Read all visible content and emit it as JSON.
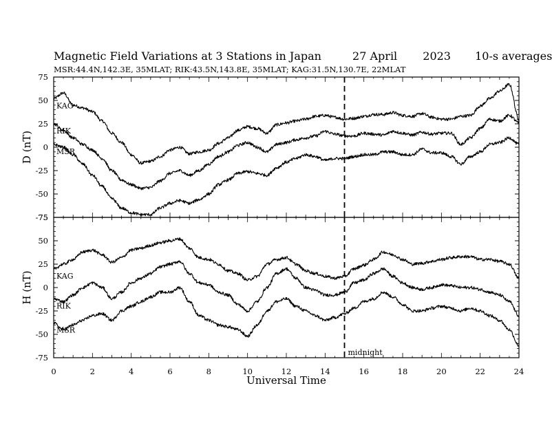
{
  "header": {
    "title": "Magnetic Field Variations at 3 Stations in Japan",
    "date": "27 April",
    "year": "2023",
    "averaging": "10-s averages",
    "subtitle": "MSR:44.4N,142.3E, 35MLAT;  RIK:43.5N,143.8E, 35MLAT;  KAG:31.5N,130.7E, 22MLAT"
  },
  "chart_data": [
    {
      "type": "line",
      "panel": "D",
      "ylabel": "D (nT)",
      "ylim": [
        -75,
        75
      ],
      "yticks": [
        -75,
        -50,
        -25,
        0,
        25,
        50,
        75
      ],
      "xlim": [
        0,
        24
      ],
      "grid": false,
      "series": [
        {
          "name": "KAG",
          "x": [
            0,
            0.5,
            1,
            1.5,
            2,
            2.5,
            3,
            3.5,
            4,
            4.5,
            5,
            5.5,
            6,
            6.5,
            7,
            7.5,
            8,
            8.5,
            9,
            9.5,
            10,
            10.5,
            11,
            11.5,
            12,
            12.5,
            13,
            13.5,
            14,
            14.5,
            15,
            15.5,
            16,
            16.5,
            17,
            17.5,
            18,
            18.5,
            19,
            19.5,
            20,
            20.5,
            21,
            21.5,
            22,
            22.5,
            23,
            23.5,
            24
          ],
          "y": [
            52,
            58,
            45,
            42,
            38,
            28,
            15,
            5,
            -8,
            -17,
            -15,
            -10,
            -3,
            0,
            -7,
            -5,
            -3,
            4,
            10,
            18,
            22,
            20,
            15,
            24,
            26,
            28,
            30,
            33,
            34,
            32,
            30,
            31,
            33,
            35,
            35,
            37,
            34,
            33,
            36,
            32,
            30,
            30,
            33,
            34,
            44,
            52,
            60,
            67,
            30
          ]
        },
        {
          "name": "RIK",
          "x": [
            0,
            0.5,
            1,
            1.5,
            2,
            2.5,
            3,
            3.5,
            4,
            4.5,
            5,
            5.5,
            6,
            6.5,
            7,
            7.5,
            8,
            8.5,
            9,
            9.5,
            10,
            10.5,
            11,
            11.5,
            12,
            12.5,
            13,
            13.5,
            14,
            14.5,
            15,
            15.5,
            16,
            16.5,
            17,
            17.5,
            18,
            18.5,
            19,
            19.5,
            20,
            20.5,
            21,
            21.5,
            22,
            22.5,
            23,
            23.5,
            24
          ],
          "y": [
            25,
            18,
            10,
            3,
            -3,
            -12,
            -25,
            -35,
            -40,
            -44,
            -43,
            -36,
            -28,
            -25,
            -30,
            -25,
            -18,
            -10,
            -5,
            2,
            5,
            0,
            -5,
            3,
            5,
            8,
            10,
            12,
            17,
            14,
            12,
            12,
            15,
            14,
            13,
            17,
            15,
            13,
            16,
            14,
            15,
            15,
            3,
            10,
            20,
            30,
            28,
            34,
            26
          ]
        },
        {
          "name": "MSR",
          "x": [
            0,
            0.5,
            1,
            1.5,
            2,
            2.5,
            3,
            3.5,
            4,
            4.5,
            5,
            5.5,
            6,
            6.5,
            7,
            7.5,
            8,
            8.5,
            9,
            9.5,
            10,
            10.5,
            11,
            11.5,
            12,
            12.5,
            13,
            13.5,
            14,
            14.5,
            15,
            15.5,
            16,
            16.5,
            17,
            17.5,
            18,
            18.5,
            19,
            19.5,
            20,
            20.5,
            21,
            21.5,
            22,
            22.5,
            23,
            23.5,
            24
          ],
          "y": [
            3,
            0,
            -8,
            -18,
            -30,
            -42,
            -55,
            -65,
            -70,
            -72,
            -72,
            -65,
            -60,
            -57,
            -60,
            -56,
            -50,
            -40,
            -35,
            -28,
            -26,
            -28,
            -30,
            -22,
            -16,
            -12,
            -8,
            -10,
            -14,
            -12,
            -12,
            -10,
            -8,
            -8,
            -5,
            -5,
            -8,
            -8,
            -2,
            -6,
            -6,
            -10,
            -18,
            -10,
            -5,
            3,
            5,
            10,
            3
          ]
        }
      ]
    },
    {
      "type": "line",
      "panel": "H",
      "ylabel": "H (nT)",
      "ylim": [
        -75,
        75
      ],
      "yticks": [
        -75,
        -50,
        -25,
        0,
        25,
        50,
        75
      ],
      "xlim": [
        0,
        24
      ],
      "grid": false,
      "series": [
        {
          "name": "KAG",
          "x": [
            0,
            0.5,
            1,
            1.5,
            2,
            2.5,
            3,
            3.5,
            4,
            4.5,
            5,
            5.5,
            6,
            6.5,
            7,
            7.5,
            8,
            8.5,
            9,
            9.5,
            10,
            10.5,
            11,
            11.5,
            12,
            12.5,
            13,
            13.5,
            14,
            14.5,
            15,
            15.5,
            16,
            16.5,
            17,
            17.5,
            18,
            18.5,
            19,
            19.5,
            20,
            20.5,
            21,
            21.5,
            22,
            22.5,
            23,
            23.5,
            24
          ],
          "y": [
            20,
            25,
            30,
            38,
            40,
            35,
            27,
            32,
            40,
            42,
            45,
            48,
            50,
            52,
            42,
            32,
            30,
            25,
            18,
            15,
            8,
            12,
            25,
            30,
            32,
            25,
            18,
            15,
            12,
            10,
            12,
            20,
            24,
            30,
            38,
            35,
            30,
            25,
            26,
            28,
            30,
            32,
            33,
            33,
            30,
            30,
            28,
            25,
            10
          ]
        },
        {
          "name": "RIK",
          "x": [
            0,
            0.5,
            1,
            1.5,
            2,
            2.5,
            3,
            3.5,
            4,
            4.5,
            5,
            5.5,
            6,
            6.5,
            7,
            7.5,
            8,
            8.5,
            9,
            9.5,
            10,
            10.5,
            11,
            11.5,
            12,
            12.5,
            13,
            13.5,
            14,
            14.5,
            15,
            15.5,
            16,
            16.5,
            17,
            17.5,
            18,
            18.5,
            19,
            19.5,
            20,
            20.5,
            21,
            21.5,
            22,
            22.5,
            23,
            23.5,
            24
          ],
          "y": [
            -12,
            -15,
            -8,
            0,
            5,
            0,
            -12,
            -5,
            5,
            10,
            15,
            22,
            25,
            28,
            15,
            5,
            3,
            -5,
            -8,
            -18,
            -25,
            -15,
            0,
            15,
            20,
            10,
            0,
            -3,
            -8,
            -8,
            -5,
            5,
            8,
            15,
            20,
            12,
            5,
            0,
            -2,
            0,
            3,
            2,
            0,
            0,
            -2,
            -5,
            -8,
            -15,
            -30
          ]
        },
        {
          "name": "MSR",
          "x": [
            0,
            0.5,
            1,
            1.5,
            2,
            2.5,
            3,
            3.5,
            4,
            4.5,
            5,
            5.5,
            6,
            6.5,
            7,
            7.5,
            8,
            8.5,
            9,
            9.5,
            10,
            10.5,
            11,
            11.5,
            12,
            12.5,
            13,
            13.5,
            14,
            14.5,
            15,
            15.5,
            16,
            16.5,
            17,
            17.5,
            18,
            18.5,
            19,
            19.5,
            20,
            20.5,
            21,
            21.5,
            22,
            22.5,
            23,
            23.5,
            24
          ],
          "y": [
            -38,
            -45,
            -40,
            -35,
            -30,
            -28,
            -35,
            -25,
            -20,
            -15,
            -10,
            -5,
            -5,
            0,
            -15,
            -30,
            -35,
            -40,
            -42,
            -45,
            -52,
            -40,
            -25,
            -15,
            -12,
            -20,
            -25,
            -30,
            -35,
            -32,
            -28,
            -22,
            -15,
            -12,
            -5,
            -10,
            -18,
            -25,
            -25,
            -22,
            -20,
            -22,
            -25,
            -22,
            -25,
            -30,
            -35,
            -45,
            -62
          ]
        }
      ]
    }
  ],
  "axes": {
    "xlabel": "Universal Time",
    "xticks": [
      0,
      2,
      4,
      6,
      8,
      10,
      12,
      14,
      16,
      18,
      20,
      22,
      24
    ],
    "midnight_ut": 15,
    "midnight_label": "midnight"
  }
}
